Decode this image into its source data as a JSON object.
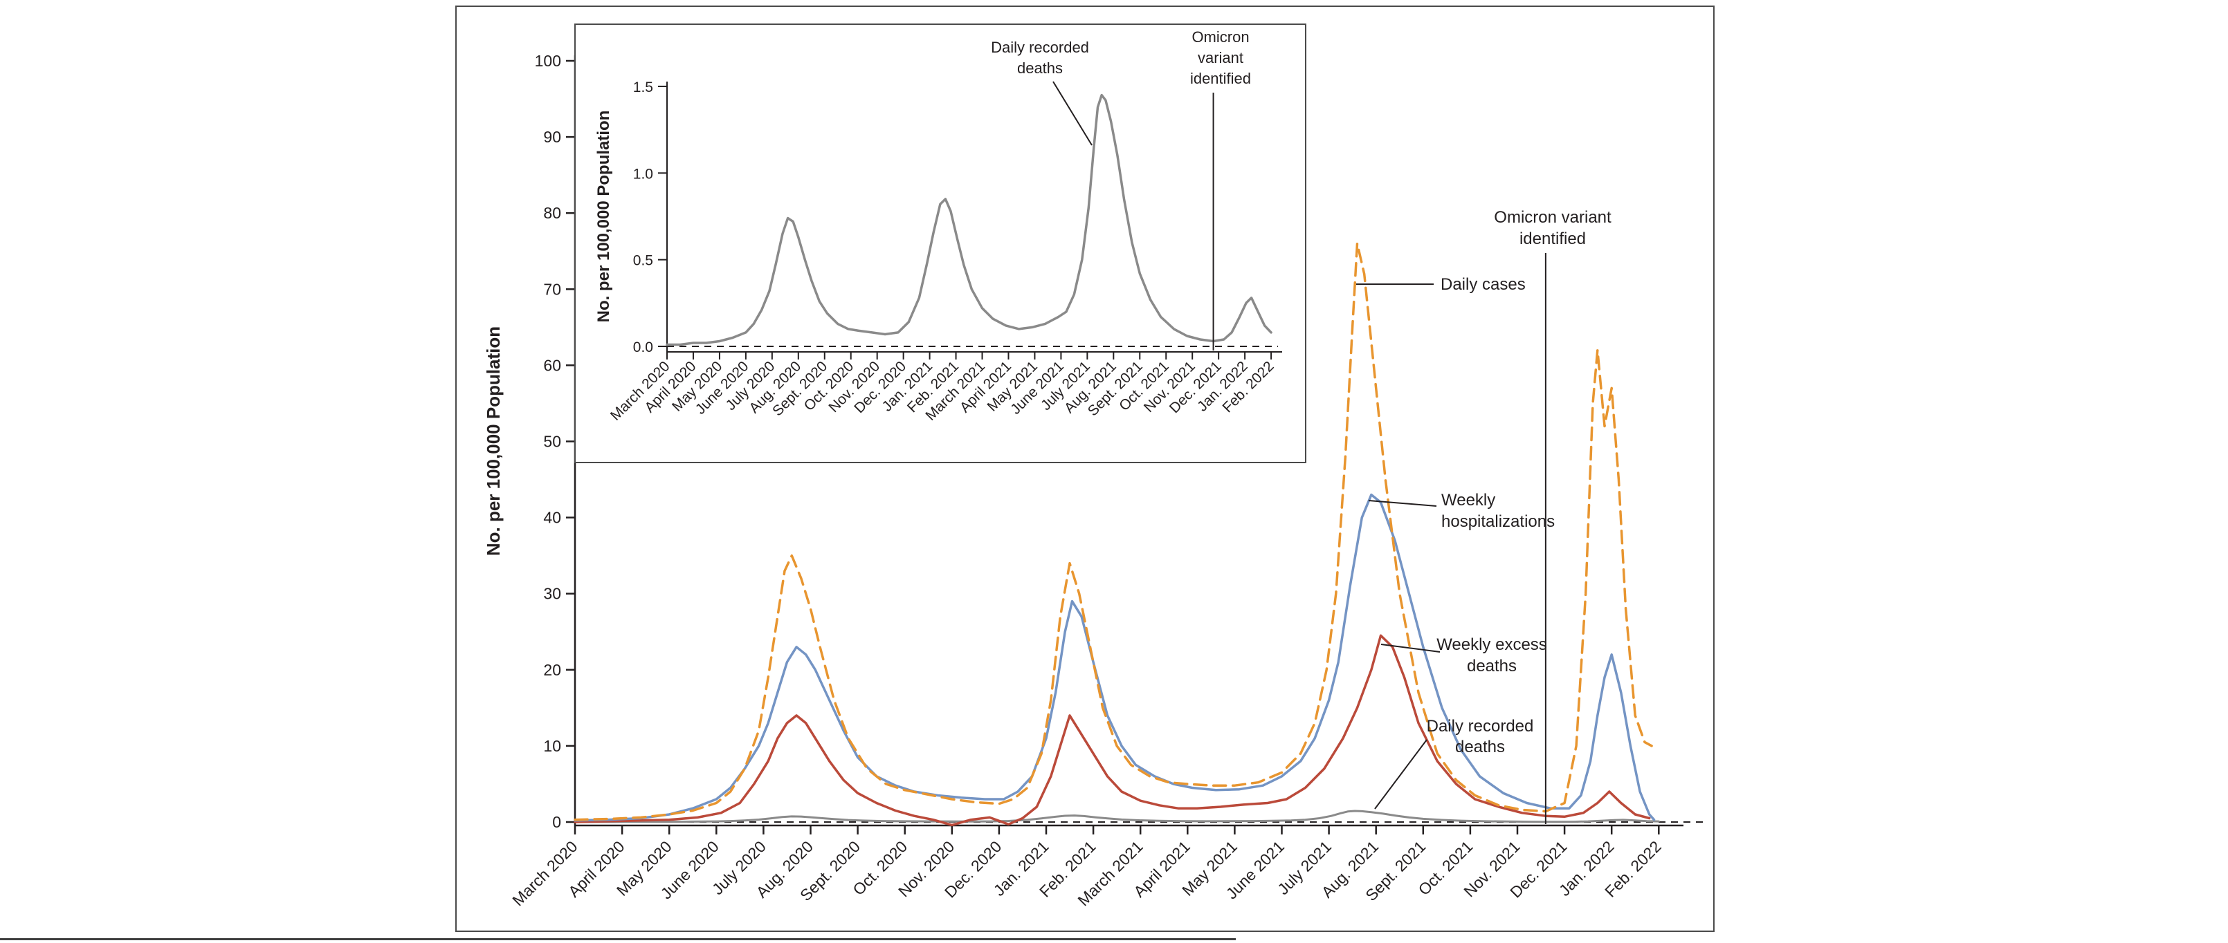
{
  "figure": {
    "panel_border_color": "#4a4a4a",
    "axis_color": "#231F20"
  },
  "chart_data": [
    {
      "id": "main",
      "type": "line",
      "title": "",
      "xlabel": "",
      "ylabel": "No. per 100,000 Population",
      "ylim": [
        0,
        100
      ],
      "yticks": [
        0,
        10,
        20,
        30,
        40,
        50,
        60,
        70,
        80,
        90,
        100
      ],
      "ytick_labels": [
        "0",
        "10",
        "20",
        "30",
        "40",
        "50",
        "60",
        "70",
        "80",
        "90",
        "100"
      ],
      "x_unit": "months since March 2020",
      "zero_reference_line": "dashed",
      "categories": [
        "March 2020",
        "April 2020",
        "May 2020",
        "June 2020",
        "July 2020",
        "Aug. 2020",
        "Sept. 2020",
        "Oct. 2020",
        "Nov. 2020",
        "Dec. 2020",
        "Jan. 2021",
        "Feb. 2021",
        "March 2021",
        "April 2021",
        "May 2021",
        "June 2021",
        "July 2021",
        "Aug. 2021",
        "Sept. 2021",
        "Oct. 2021",
        "Nov. 2021",
        "Dec. 2021",
        "Jan. 2022",
        "Feb. 2022"
      ],
      "series": [
        {
          "name": "Daily cases",
          "color": "#E8952F",
          "dash": "18 10",
          "width": 3.5,
          "x": [
            0,
            0.7,
            1.4,
            2,
            2.5,
            3,
            3.3,
            3.6,
            3.9,
            4.1,
            4.3,
            4.45,
            4.6,
            4.8,
            5,
            5.2,
            5.5,
            5.8,
            6.2,
            6.6,
            7,
            7.5,
            8,
            8.5,
            9,
            9.3,
            9.6,
            9.9,
            10.1,
            10.3,
            10.5,
            10.7,
            10.9,
            11.2,
            11.5,
            11.8,
            12.2,
            12.6,
            13,
            13.5,
            14,
            14.5,
            15,
            15.4,
            15.7,
            15.95,
            16.15,
            16.35,
            16.5,
            16.6,
            16.75,
            16.95,
            17.2,
            17.5,
            17.9,
            18.3,
            18.7,
            19.1,
            19.6,
            20.1,
            20.6,
            21,
            21.25,
            21.45,
            21.6,
            21.7,
            21.85,
            22,
            22.15,
            22.3,
            22.5,
            22.7,
            22.85
          ],
          "y": [
            0.3,
            0.4,
            0.6,
            1,
            1.5,
            2.5,
            4,
            7,
            12,
            19,
            27,
            33,
            35,
            32,
            28,
            23,
            16,
            11,
            7,
            5,
            4.2,
            3.6,
            3,
            2.6,
            2.4,
            3,
            4.5,
            9,
            16,
            27,
            34,
            30,
            24,
            15,
            10,
            7.5,
            6,
            5.2,
            5,
            4.8,
            4.8,
            5.2,
            6.5,
            9,
            13,
            20,
            30,
            48,
            65,
            76,
            72,
            60,
            45,
            30,
            17,
            9,
            5.5,
            3.5,
            2.2,
            1.6,
            1.4,
            2.5,
            10,
            30,
            55,
            62,
            52,
            57,
            45,
            28,
            14,
            10.5,
            10
          ]
        },
        {
          "name": "Weekly hospitalizations",
          "color": "#7494C4",
          "dash": "",
          "width": 3.5,
          "x": [
            0,
            0.7,
            1.4,
            2,
            2.5,
            3,
            3.3,
            3.6,
            3.9,
            4.1,
            4.3,
            4.5,
            4.7,
            4.9,
            5.1,
            5.4,
            5.7,
            6,
            6.4,
            6.8,
            7.2,
            7.7,
            8.2,
            8.7,
            9.1,
            9.4,
            9.7,
            10,
            10.2,
            10.4,
            10.55,
            10.75,
            11,
            11.3,
            11.6,
            11.9,
            12.3,
            12.7,
            13.1,
            13.6,
            14.1,
            14.6,
            15,
            15.4,
            15.7,
            16,
            16.2,
            16.45,
            16.7,
            16.9,
            17.1,
            17.4,
            17.7,
            18,
            18.4,
            18.8,
            19.2,
            19.7,
            20.2,
            20.7,
            21.1,
            21.35,
            21.55,
            21.7,
            21.85,
            22,
            22.2,
            22.4,
            22.6,
            22.8,
            22.9
          ],
          "y": [
            0.2,
            0.3,
            0.5,
            1,
            1.8,
            3,
            4.5,
            7,
            10,
            13,
            17,
            21,
            23,
            22,
            20,
            16,
            12,
            8.5,
            6,
            4.8,
            4,
            3.5,
            3.2,
            3,
            3,
            4,
            6,
            11,
            17,
            25,
            29,
            27,
            21,
            14,
            10,
            7.5,
            6,
            5,
            4.5,
            4.2,
            4.3,
            4.8,
            6,
            8,
            11,
            16,
            21,
            31,
            40,
            43,
            42,
            37,
            30,
            23,
            15,
            9.5,
            6,
            3.8,
            2.5,
            1.8,
            1.8,
            3.5,
            8,
            14,
            19,
            22,
            17,
            10,
            4,
            1,
            0.3
          ]
        },
        {
          "name": "Weekly excess deaths",
          "color": "#BB4A3A",
          "dash": "",
          "width": 3.5,
          "x": [
            0,
            0.7,
            1.4,
            2,
            2.6,
            3.1,
            3.5,
            3.8,
            4.1,
            4.3,
            4.5,
            4.7,
            4.9,
            5.1,
            5.4,
            5.7,
            6,
            6.4,
            6.8,
            7.2,
            7.6,
            8,
            8.4,
            8.8,
            9.2,
            9.5,
            9.8,
            10.1,
            10.3,
            10.5,
            10.7,
            11,
            11.3,
            11.6,
            12,
            12.4,
            12.8,
            13.2,
            13.7,
            14.2,
            14.7,
            15.1,
            15.5,
            15.9,
            16.3,
            16.6,
            16.9,
            17.1,
            17.35,
            17.6,
            17.9,
            18.3,
            18.7,
            19.1,
            19.6,
            20.1,
            20.6,
            21,
            21.4,
            21.7,
            21.95,
            22.2,
            22.5,
            22.8
          ],
          "y": [
            0,
            0.1,
            0.2,
            0.3,
            0.6,
            1.2,
            2.5,
            5,
            8,
            11,
            13,
            14,
            13,
            11,
            8,
            5.5,
            3.8,
            2.5,
            1.5,
            0.8,
            0.3,
            -0.4,
            0.3,
            0.6,
            -0.3,
            0.5,
            2,
            6,
            10,
            14,
            12,
            9,
            6,
            4,
            2.8,
            2.2,
            1.8,
            1.8,
            2,
            2.3,
            2.5,
            3,
            4.5,
            7,
            11,
            15,
            20,
            24.5,
            23,
            19,
            13,
            8,
            5,
            3,
            2,
            1.2,
            0.8,
            0.7,
            1.2,
            2.5,
            4,
            2.5,
            1,
            0.5
          ]
        },
        {
          "name": "Daily recorded deaths",
          "color": "#8A8A8A",
          "dash": "",
          "width": 3,
          "x": [
            0,
            0.5,
            1,
            1.5,
            2,
            2.5,
            3,
            3.3,
            3.6,
            3.9,
            4.15,
            4.4,
            4.6,
            4.8,
            5,
            5.25,
            5.5,
            5.8,
            6.1,
            6.5,
            6.9,
            7.3,
            7.8,
            8.3,
            8.8,
            9.2,
            9.6,
            9.9,
            10.15,
            10.4,
            10.6,
            10.8,
            11.05,
            11.3,
            11.6,
            12,
            12.4,
            12.9,
            13.4,
            13.9,
            14.4,
            14.9,
            15.2,
            15.5,
            15.8,
            16.05,
            16.25,
            16.4,
            16.55,
            16.7,
            16.9,
            17.15,
            17.4,
            17.7,
            18,
            18.4,
            18.8,
            19.3,
            19.8,
            20.3,
            20.8,
            21.2,
            21.5,
            21.8,
            22.05,
            22.25,
            22.5,
            22.75,
            23
          ],
          "y": [
            0.01,
            0.01,
            0.02,
            0.02,
            0.03,
            0.05,
            0.08,
            0.13,
            0.21,
            0.32,
            0.48,
            0.65,
            0.74,
            0.72,
            0.63,
            0.5,
            0.38,
            0.26,
            0.19,
            0.13,
            0.1,
            0.09,
            0.08,
            0.07,
            0.08,
            0.14,
            0.28,
            0.48,
            0.66,
            0.82,
            0.85,
            0.78,
            0.62,
            0.47,
            0.33,
            0.22,
            0.16,
            0.12,
            0.1,
            0.11,
            0.13,
            0.17,
            0.2,
            0.3,
            0.5,
            0.8,
            1.15,
            1.38,
            1.45,
            1.42,
            1.3,
            1.1,
            0.85,
            0.6,
            0.42,
            0.27,
            0.17,
            0.1,
            0.06,
            0.04,
            0.03,
            0.04,
            0.08,
            0.17,
            0.25,
            0.28,
            0.2,
            0.12,
            0.08
          ]
        }
      ],
      "annotations": {
        "omicron": {
          "lines": [
            "Omicron variant",
            "identified"
          ],
          "x_month": 20.6
        },
        "daily_cases_label": {
          "lines": [
            "Daily cases"
          ]
        },
        "weekly_hospitalizations_label": {
          "lines": [
            "Weekly",
            "hospitalizations"
          ]
        },
        "weekly_excess_deaths_label": {
          "lines": [
            "Weekly excess",
            "deaths"
          ]
        },
        "daily_recorded_deaths_label": {
          "lines": [
            "Daily recorded",
            "deaths"
          ]
        }
      }
    },
    {
      "id": "inset",
      "type": "line",
      "title": "",
      "xlabel": "",
      "ylabel": "No. per 100,000 Population",
      "ylim": [
        0,
        1.5
      ],
      "yticks": [
        0,
        0.5,
        1,
        1.5
      ],
      "ytick_labels": [
        "0.0",
        "0.5",
        "1.0",
        "1.5"
      ],
      "x_unit": "months since March 2020",
      "zero_reference_line": "dashed",
      "categories": [
        "March 2020",
        "April 2020",
        "May 2020",
        "June 2020",
        "July 2020",
        "Aug. 2020",
        "Sept. 2020",
        "Oct. 2020",
        "Nov. 2020",
        "Dec. 2020",
        "Jan. 2021",
        "Feb. 2021",
        "March 2021",
        "April 2021",
        "May 2021",
        "June 2021",
        "July 2021",
        "Aug. 2021",
        "Sept. 2021",
        "Oct. 2021",
        "Nov. 2021",
        "Dec. 2021",
        "Jan. 2022",
        "Feb. 2022"
      ],
      "series": [
        {
          "name": "Daily recorded deaths",
          "color": "#8A8A8A",
          "dash": "",
          "width": 3.5,
          "x": [
            0,
            0.5,
            1,
            1.5,
            2,
            2.5,
            3,
            3.3,
            3.6,
            3.9,
            4.15,
            4.4,
            4.6,
            4.8,
            5,
            5.25,
            5.5,
            5.8,
            6.1,
            6.5,
            6.9,
            7.3,
            7.8,
            8.3,
            8.8,
            9.2,
            9.6,
            9.9,
            10.15,
            10.4,
            10.6,
            10.8,
            11.05,
            11.3,
            11.6,
            12,
            12.4,
            12.9,
            13.4,
            13.9,
            14.4,
            14.9,
            15.2,
            15.5,
            15.8,
            16.05,
            16.25,
            16.4,
            16.55,
            16.7,
            16.9,
            17.15,
            17.4,
            17.7,
            18,
            18.4,
            18.8,
            19.3,
            19.8,
            20.3,
            20.8,
            21.2,
            21.5,
            21.8,
            22.05,
            22.25,
            22.5,
            22.75,
            23
          ],
          "y": [
            0.01,
            0.01,
            0.02,
            0.02,
            0.03,
            0.05,
            0.08,
            0.13,
            0.21,
            0.32,
            0.48,
            0.65,
            0.74,
            0.72,
            0.63,
            0.5,
            0.38,
            0.26,
            0.19,
            0.13,
            0.1,
            0.09,
            0.08,
            0.07,
            0.08,
            0.14,
            0.28,
            0.48,
            0.66,
            0.82,
            0.85,
            0.78,
            0.62,
            0.47,
            0.33,
            0.22,
            0.16,
            0.12,
            0.1,
            0.11,
            0.13,
            0.17,
            0.2,
            0.3,
            0.5,
            0.8,
            1.15,
            1.38,
            1.45,
            1.42,
            1.3,
            1.1,
            0.85,
            0.6,
            0.42,
            0.27,
            0.17,
            0.1,
            0.06,
            0.04,
            0.03,
            0.04,
            0.08,
            0.17,
            0.25,
            0.28,
            0.2,
            0.12,
            0.08
          ]
        }
      ],
      "annotations": {
        "daily_recorded_deaths_label": {
          "lines": [
            "Daily recorded",
            "deaths"
          ]
        },
        "omicron": {
          "lines": [
            "Omicron",
            "variant",
            "identified"
          ],
          "x_month": 20.8
        }
      }
    }
  ]
}
